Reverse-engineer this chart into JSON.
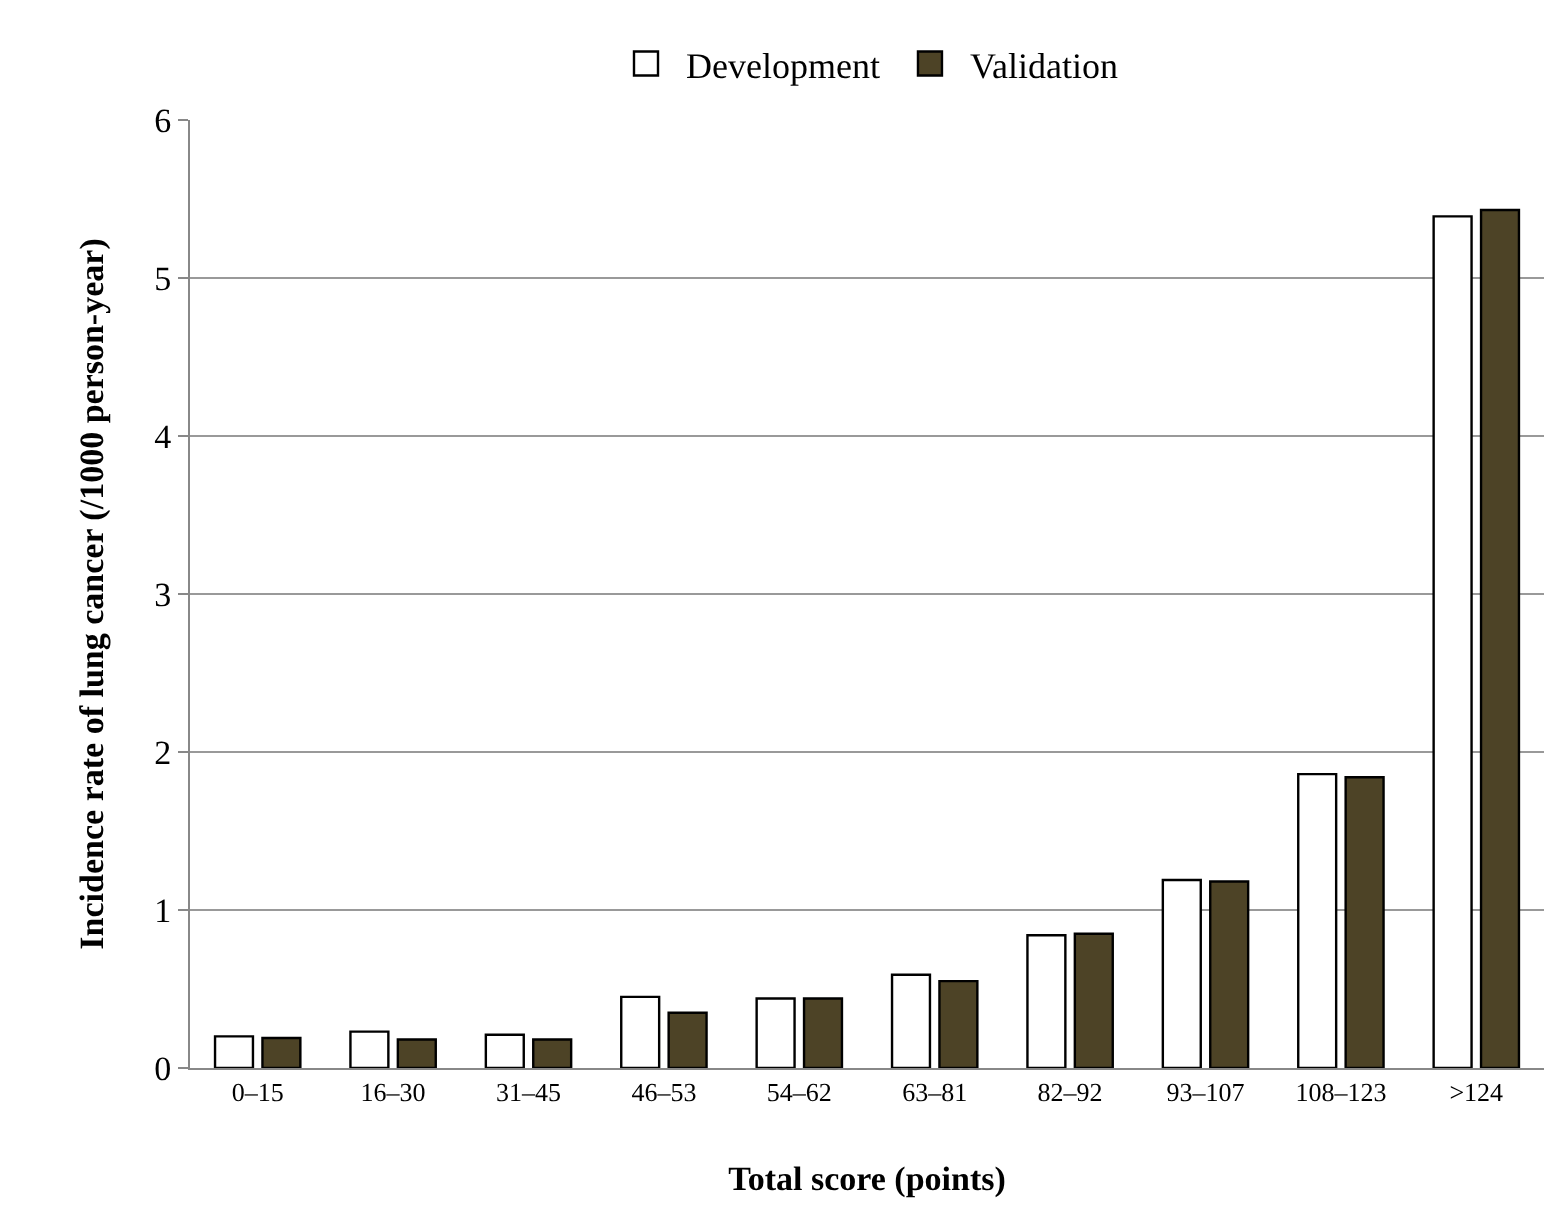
{
  "chart_data": {
    "type": "bar",
    "xlabel": "Total score (points)",
    "ylabel": "Incidence rate of lung cancer (/1000 person-year)",
    "categories": [
      "0–15",
      "16–30",
      "31–45",
      "46–53",
      "54–62",
      "63–81",
      "82–92",
      "93–107",
      "108–123",
      ">124"
    ],
    "series": [
      {
        "name": "Development",
        "color": "#ffffff",
        "values": [
          0.2,
          0.23,
          0.21,
          0.45,
          0.44,
          0.59,
          0.84,
          1.19,
          1.86,
          5.39
        ]
      },
      {
        "name": "Validation",
        "color": "#4d4326",
        "values": [
          0.19,
          0.18,
          0.18,
          0.35,
          0.44,
          0.55,
          0.85,
          1.18,
          1.84,
          5.43
        ]
      }
    ],
    "ylim": [
      0,
      6
    ],
    "yticks": [
      0,
      1,
      2,
      3,
      4,
      5,
      6
    ],
    "grid": "y",
    "legend": "top"
  }
}
